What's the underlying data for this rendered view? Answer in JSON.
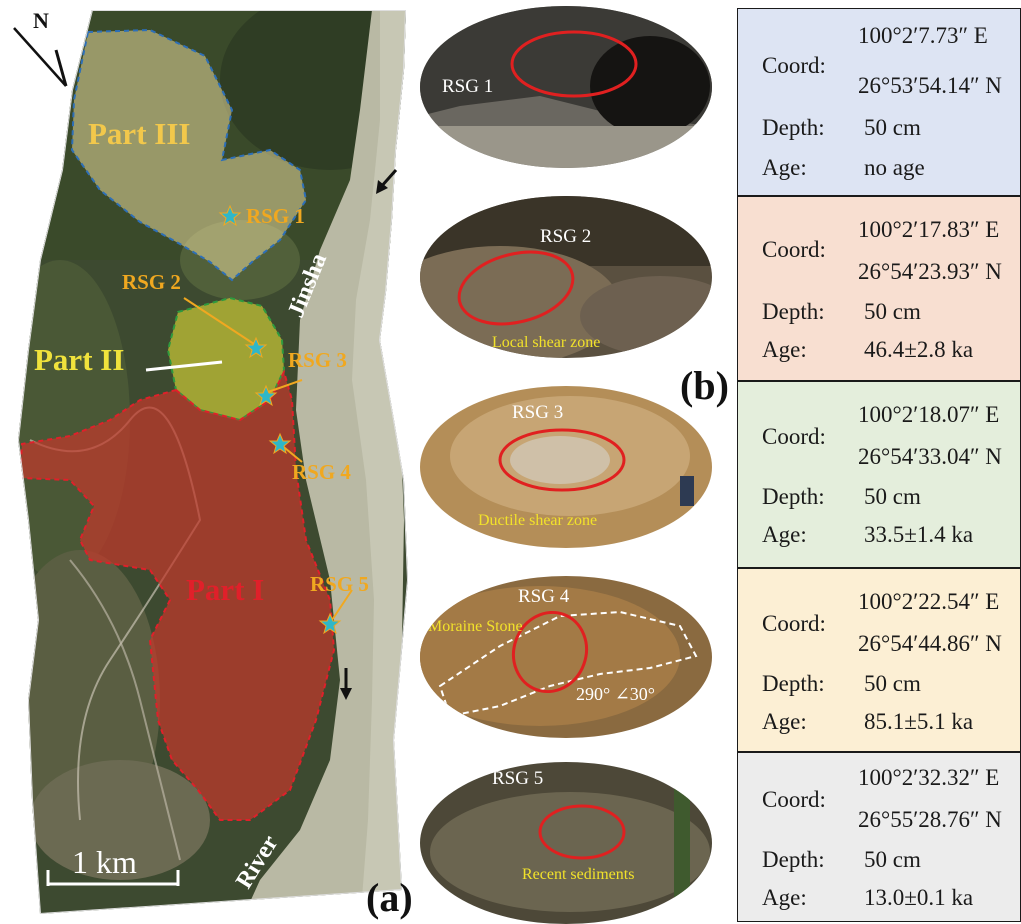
{
  "map": {
    "north_label": "N",
    "part_labels": {
      "part1": "Part I",
      "part2": "Part II",
      "part3": "Part III"
    },
    "site_labels": [
      "RSG 1",
      "RSG 2",
      "RSG 3",
      "RSG 4",
      "RSG 5"
    ],
    "river_labels": {
      "upper": "Jinsha",
      "lower": "River"
    },
    "scale_label": "1 km",
    "panel_label": "(a)",
    "marker_icon": "star-icon",
    "flow_icon": "arrow-icon",
    "colors": {
      "part1": "#c0392b",
      "part2": "#d6d237",
      "part3": "#e6d89a",
      "marker": "#2fb7c8"
    }
  },
  "photos": {
    "panel_label": "(b)",
    "items": [
      {
        "label": "RSG 1",
        "note": ""
      },
      {
        "label": "RSG 2",
        "note": "Local shear zone"
      },
      {
        "label": "RSG 3",
        "note": "Ductile shear zone"
      },
      {
        "label": "RSG 4",
        "note": "Moraine Stone",
        "attitude": "290°  ∠30°"
      },
      {
        "label": "RSG 5",
        "note": "Recent sediments"
      }
    ]
  },
  "info": {
    "labels": {
      "coord": "Coord:",
      "depth": "Depth:",
      "age": "Age:"
    },
    "items": [
      {
        "lon": "100°2′7.73″ E",
        "lat": "26°53′54.14″ N",
        "depth": "50 cm",
        "age": "no age",
        "color": "#dde4f3"
      },
      {
        "lon": "100°2′17.83″ E",
        "lat": "26°54′23.93″ N",
        "depth": "50 cm",
        "age": "46.4±2.8 ka",
        "color": "#f8dfd1"
      },
      {
        "lon": "100°2′18.07″ E",
        "lat": "26°54′33.04″ N",
        "depth": "50 cm",
        "age": "33.5±1.4 ka",
        "color": "#e4eedc"
      },
      {
        "lon": "100°2′22.54″ E",
        "lat": "26°54′44.86″ N",
        "depth": "50 cm",
        "age": "85.1±5.1 ka",
        "color": "#fcefd4"
      },
      {
        "lon": "100°2′32.32″ E",
        "lat": "26°55′28.76″ N",
        "depth": "50 cm",
        "age": "13.0±0.1 ka",
        "color": "#ececec"
      }
    ]
  }
}
